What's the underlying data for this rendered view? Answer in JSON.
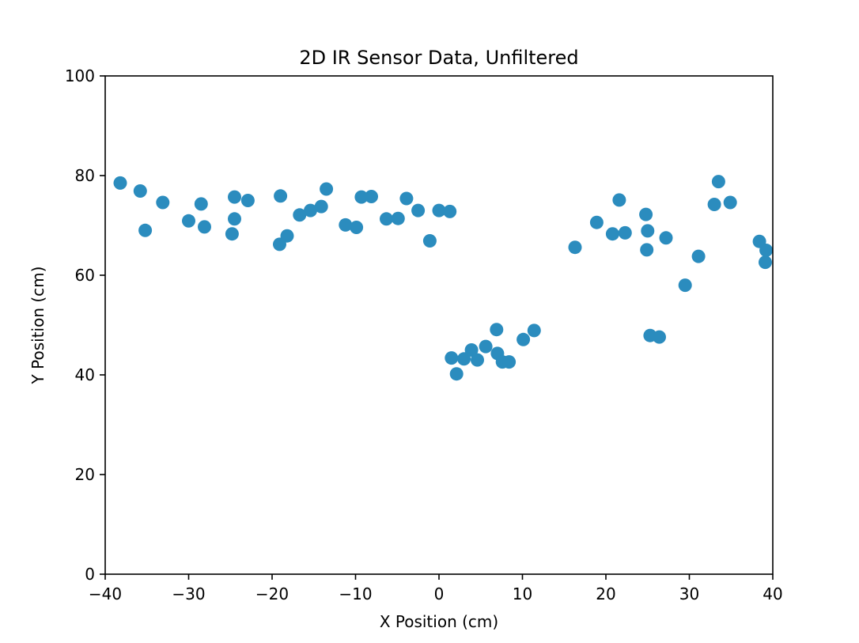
{
  "chart_data": {
    "type": "scatter",
    "title": "2D IR Sensor Data, Unfiltered",
    "xlabel": "X Position (cm)",
    "ylabel": "Y Position (cm)",
    "xlim": [
      -40,
      40
    ],
    "ylim": [
      0,
      100
    ],
    "x_ticks": [
      -40,
      -30,
      -20,
      -10,
      0,
      10,
      20,
      30,
      40
    ],
    "x_tick_labels": [
      "−40",
      "−30",
      "−20",
      "−10",
      "0",
      "10",
      "20",
      "30",
      "40"
    ],
    "y_ticks": [
      0,
      20,
      40,
      60,
      80,
      100
    ],
    "y_tick_labels": [
      "0",
      "20",
      "40",
      "60",
      "80",
      "100"
    ],
    "grid": false,
    "legend": "none",
    "marker_color": "#2b8cbe",
    "series": [
      {
        "points": [
          {
            "x": -38.2,
            "y": 78.5
          },
          {
            "x": -35.8,
            "y": 76.9
          },
          {
            "x": -35.2,
            "y": 69.0
          },
          {
            "x": -33.1,
            "y": 74.6
          },
          {
            "x": -30.0,
            "y": 70.9
          },
          {
            "x": -28.5,
            "y": 74.3
          },
          {
            "x": -28.1,
            "y": 69.7
          },
          {
            "x": -24.8,
            "y": 68.3
          },
          {
            "x": -24.5,
            "y": 75.7
          },
          {
            "x": -24.5,
            "y": 71.3
          },
          {
            "x": -22.9,
            "y": 75.0
          },
          {
            "x": -19.0,
            "y": 75.9
          },
          {
            "x": -19.1,
            "y": 66.2
          },
          {
            "x": -18.2,
            "y": 67.9
          },
          {
            "x": -16.7,
            "y": 72.1
          },
          {
            "x": -15.4,
            "y": 73.0
          },
          {
            "x": -14.1,
            "y": 73.8
          },
          {
            "x": -13.5,
            "y": 77.3
          },
          {
            "x": -11.2,
            "y": 70.1
          },
          {
            "x": -9.9,
            "y": 69.6
          },
          {
            "x": -9.3,
            "y": 75.7
          },
          {
            "x": -8.1,
            "y": 75.8
          },
          {
            "x": -6.3,
            "y": 71.3
          },
          {
            "x": -4.9,
            "y": 71.4
          },
          {
            "x": -3.9,
            "y": 75.4
          },
          {
            "x": -2.5,
            "y": 73.0
          },
          {
            "x": -1.1,
            "y": 66.9
          },
          {
            "x": 0.0,
            "y": 73.0
          },
          {
            "x": 1.3,
            "y": 72.8
          },
          {
            "x": 1.5,
            "y": 43.4
          },
          {
            "x": 2.1,
            "y": 40.2
          },
          {
            "x": 3.0,
            "y": 43.2
          },
          {
            "x": 3.9,
            "y": 45.0
          },
          {
            "x": 4.6,
            "y": 43.0
          },
          {
            "x": 5.6,
            "y": 45.7
          },
          {
            "x": 6.9,
            "y": 49.1
          },
          {
            "x": 7.0,
            "y": 44.3
          },
          {
            "x": 7.6,
            "y": 42.6
          },
          {
            "x": 8.4,
            "y": 42.6
          },
          {
            "x": 10.1,
            "y": 47.1
          },
          {
            "x": 11.4,
            "y": 48.9
          },
          {
            "x": 16.3,
            "y": 65.6
          },
          {
            "x": 18.9,
            "y": 70.6
          },
          {
            "x": 20.8,
            "y": 68.3
          },
          {
            "x": 21.6,
            "y": 75.1
          },
          {
            "x": 22.3,
            "y": 68.5
          },
          {
            "x": 24.8,
            "y": 72.2
          },
          {
            "x": 25.0,
            "y": 68.9
          },
          {
            "x": 24.9,
            "y": 65.1
          },
          {
            "x": 25.3,
            "y": 47.9
          },
          {
            "x": 26.4,
            "y": 47.6
          },
          {
            "x": 27.2,
            "y": 67.5
          },
          {
            "x": 29.5,
            "y": 58.0
          },
          {
            "x": 31.1,
            "y": 63.8
          },
          {
            "x": 33.0,
            "y": 74.2
          },
          {
            "x": 33.5,
            "y": 78.8
          },
          {
            "x": 34.9,
            "y": 74.6
          },
          {
            "x": 38.4,
            "y": 66.8
          },
          {
            "x": 39.1,
            "y": 62.6
          },
          {
            "x": 39.2,
            "y": 65.0
          }
        ]
      }
    ]
  }
}
